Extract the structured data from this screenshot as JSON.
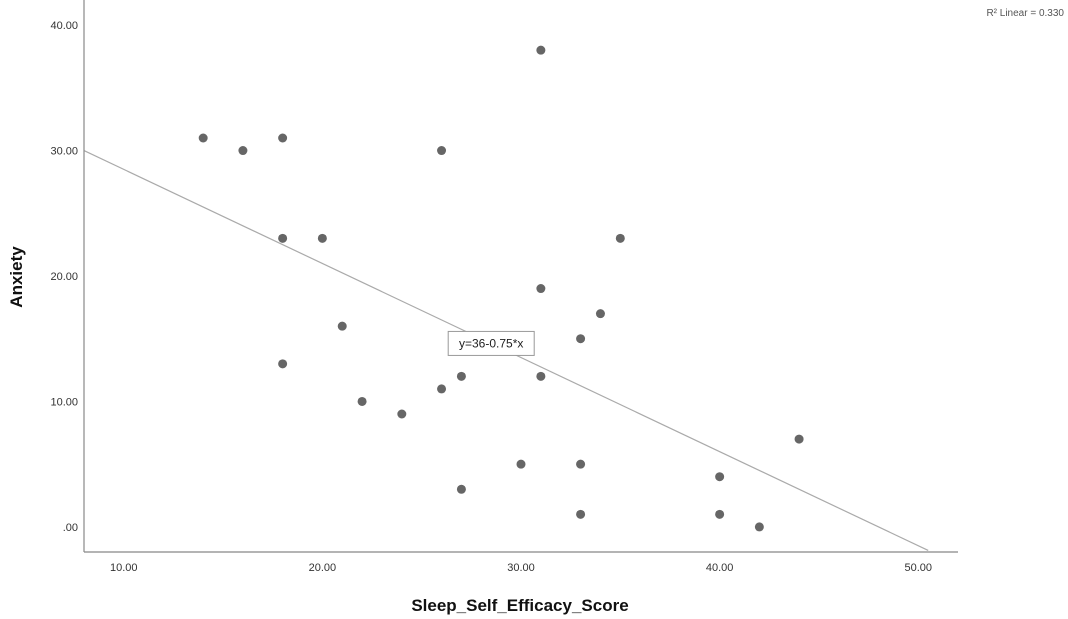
{
  "chart_data": {
    "type": "scatter",
    "xlabel": "Sleep_Self_Efficacy_Score",
    "ylabel": "Anxiety",
    "xlim": [
      8,
      52
    ],
    "ylim": [
      -2,
      42
    ],
    "x_ticks": [
      10,
      20,
      30,
      40,
      50
    ],
    "y_ticks": [
      0,
      10,
      20,
      30,
      40
    ],
    "x_tick_labels": [
      "10.00",
      "20.00",
      "30.00",
      "40.00",
      "50.00"
    ],
    "y_tick_labels": [
      ".00",
      "10.00",
      "20.00",
      "30.00",
      "40.00"
    ],
    "points": [
      {
        "x": 14,
        "y": 31
      },
      {
        "x": 16,
        "y": 30
      },
      {
        "x": 18,
        "y": 31
      },
      {
        "x": 18,
        "y": 23
      },
      {
        "x": 18,
        "y": 13
      },
      {
        "x": 20,
        "y": 23
      },
      {
        "x": 21,
        "y": 16
      },
      {
        "x": 22,
        "y": 10
      },
      {
        "x": 24,
        "y": 9
      },
      {
        "x": 26,
        "y": 30
      },
      {
        "x": 26,
        "y": 11
      },
      {
        "x": 27,
        "y": 12
      },
      {
        "x": 27,
        "y": 3
      },
      {
        "x": 30,
        "y": 5
      },
      {
        "x": 31,
        "y": 38
      },
      {
        "x": 31,
        "y": 19
      },
      {
        "x": 31,
        "y": 12
      },
      {
        "x": 33,
        "y": 15
      },
      {
        "x": 33,
        "y": 5
      },
      {
        "x": 33,
        "y": 1
      },
      {
        "x": 34,
        "y": 17
      },
      {
        "x": 35,
        "y": 23
      },
      {
        "x": 40,
        "y": 4
      },
      {
        "x": 40,
        "y": 1
      },
      {
        "x": 42,
        "y": 0
      },
      {
        "x": 44,
        "y": 7
      }
    ],
    "fit_line": {
      "intercept": 36,
      "slope": -0.75,
      "x_start": 8,
      "x_end": 50.5
    },
    "equation_label": "y=36-0.75*x",
    "r2_label": "R² Linear = 0.330",
    "point_color": "#666666",
    "line_color": "#aaaaaa",
    "grid": false
  }
}
